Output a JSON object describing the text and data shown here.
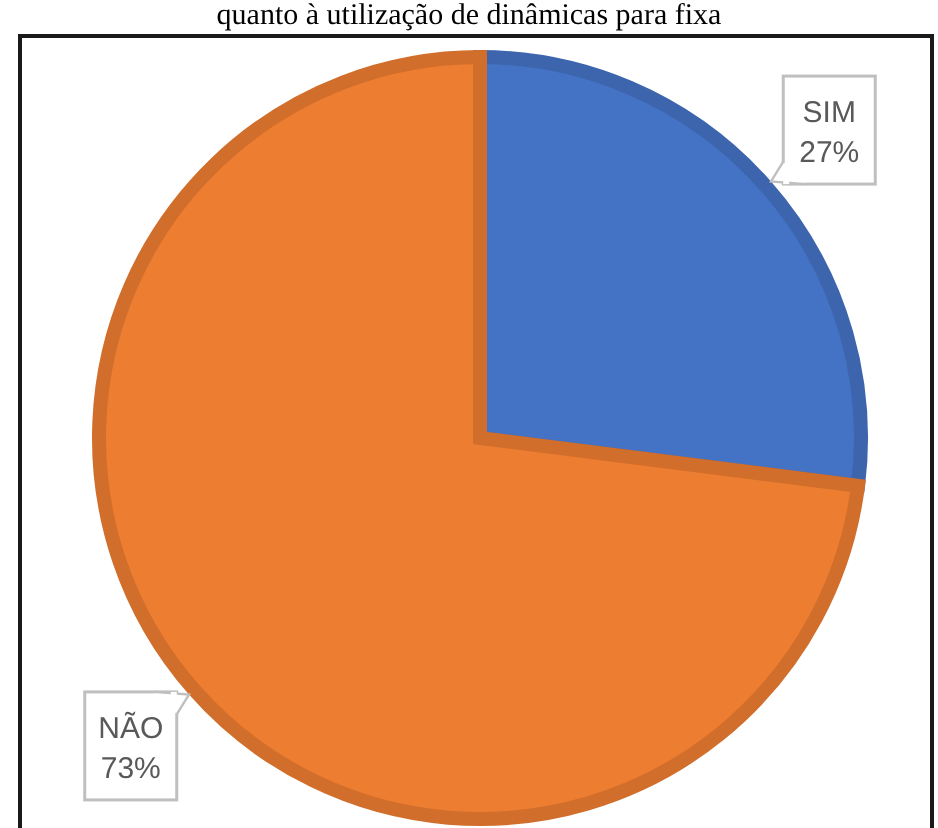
{
  "chart_data": {
    "type": "pie",
    "title": "quanto à utilização de dinâmicas para fixa",
    "categories": [
      "SIM",
      "NÃO"
    ],
    "values": [
      27,
      73
    ],
    "colors": [
      "#4472c4",
      "#ed7d31"
    ],
    "value_labels": [
      "27%",
      "73%"
    ]
  }
}
